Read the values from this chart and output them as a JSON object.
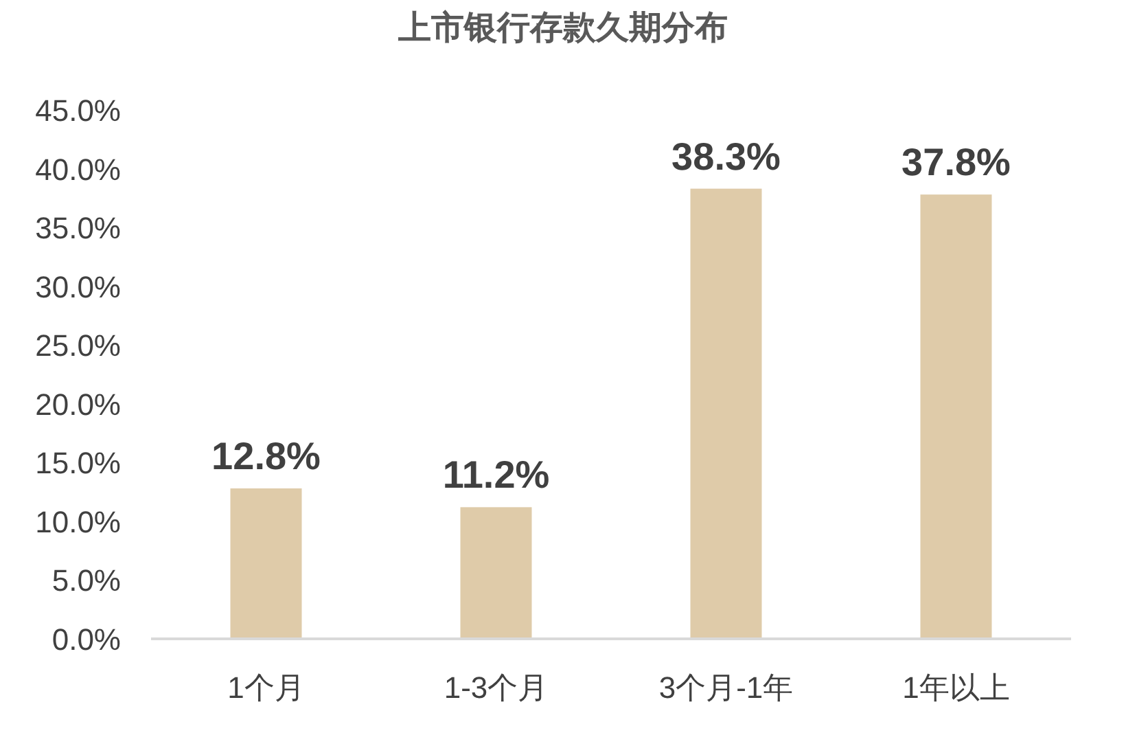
{
  "chart_data": {
    "type": "bar",
    "title": "上市银行存款久期分布",
    "categories": [
      "1个月",
      "1-3个月",
      "3个月-1年",
      "1年以上"
    ],
    "values": [
      12.8,
      11.2,
      38.3,
      37.8
    ],
    "value_labels": [
      "12.8%",
      "11.2%",
      "38.3%",
      "37.8%"
    ],
    "color": "#dfcba9",
    "ylim": [
      0,
      45
    ],
    "yticks": [
      {
        "value": 0,
        "label": "0.0%"
      },
      {
        "value": 5,
        "label": "5.0%"
      },
      {
        "value": 10,
        "label": "10.0%"
      },
      {
        "value": 15,
        "label": "15.0%"
      },
      {
        "value": 20,
        "label": "20.0%"
      },
      {
        "value": 25,
        "label": "25.0%"
      },
      {
        "value": 30,
        "label": "30.0%"
      },
      {
        "value": 35,
        "label": "35.0%"
      },
      {
        "value": 40,
        "label": "40.0%"
      },
      {
        "value": 45,
        "label": "45.0%"
      }
    ],
    "grid": false
  }
}
